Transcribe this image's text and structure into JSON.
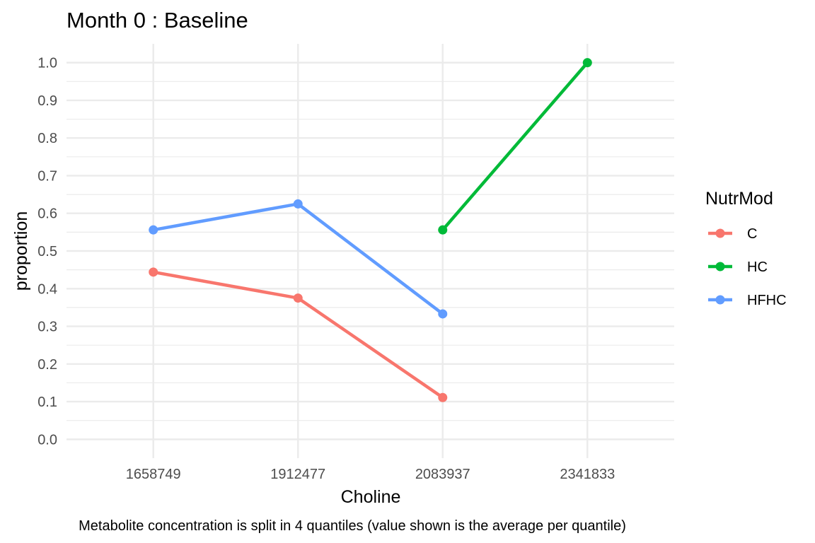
{
  "chart_data": {
    "type": "line",
    "title": "Month 0 : Baseline",
    "xlabel": "Choline",
    "ylabel": "proportion",
    "caption": "Metabolite concentration is split in 4 quantiles (value shown is the average per quantile)",
    "categories": [
      "1658749",
      "1912477",
      "2083937",
      "2341833"
    ],
    "ylim": [
      -0.05,
      1.05
    ],
    "yticks": [
      0.0,
      0.1,
      0.2,
      0.3,
      0.4,
      0.5,
      0.6,
      0.7,
      0.8,
      0.9,
      1.0
    ],
    "ytick_labels": [
      "0.0",
      "0.1",
      "0.2",
      "0.3",
      "0.4",
      "0.5",
      "0.6",
      "0.7",
      "0.8",
      "0.9",
      "1.0"
    ],
    "grid": true,
    "legend": {
      "title": "NutrMod",
      "placement": "right"
    },
    "series": [
      {
        "name": "C",
        "color": "#F8766D",
        "values": [
          0.444,
          0.375,
          0.111,
          null
        ]
      },
      {
        "name": "HC",
        "color": "#00BA38",
        "values": [
          null,
          null,
          0.556,
          1.0
        ]
      },
      {
        "name": "HFHC",
        "color": "#619CFF",
        "values": [
          0.556,
          0.625,
          0.333,
          null
        ]
      }
    ]
  }
}
